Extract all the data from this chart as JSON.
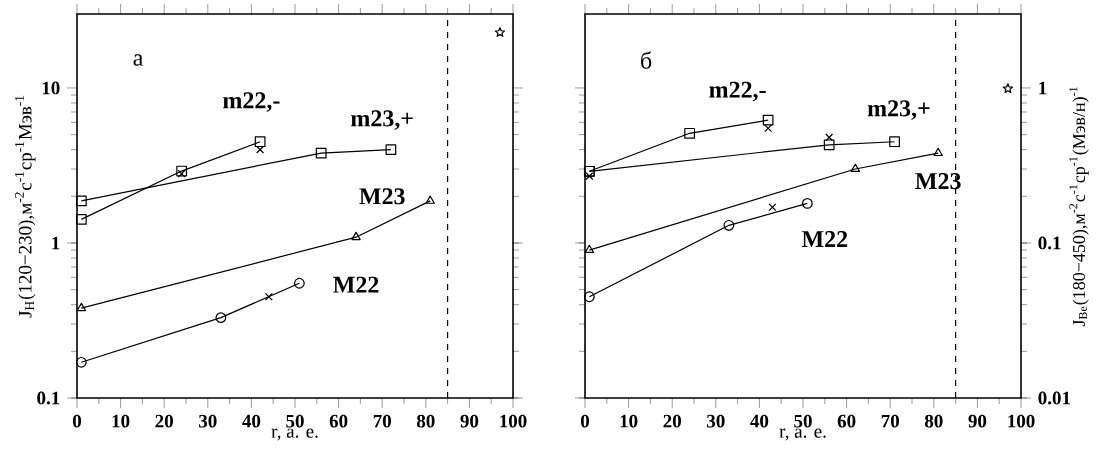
{
  "chart_data": [
    {
      "type": "line",
      "xlabel": "r,  а. е.",
      "ylabel": "J$_{Н}$(120−230),м$^{-2}$с$^{-1}$ср$^{-1}$Мэв$^{-1}$",
      "annotations": [
        "а"
      ],
      "log": "y",
      "xlim": [
        0,
        100
      ],
      "xticks": [
        0,
        10,
        20,
        30,
        40,
        50,
        60,
        70,
        80,
        90,
        100
      ],
      "ylim": [
        0.1,
        30
      ],
      "yticks": [
        0.1,
        1,
        10
      ],
      "ref_lines": [
        {
          "axis": "x",
          "value": 85,
          "line_style": "dashed"
        }
      ],
      "series": [
        {
          "name": "m22,-",
          "color": "#000000",
          "marker": "square",
          "x": [
            1,
            24,
            42
          ],
          "values": [
            1.42,
            2.91,
            4.5
          ]
        },
        {
          "name": "m23,+",
          "color": "#000000",
          "marker": "square",
          "x": [
            1,
            56,
            72
          ],
          "values": [
            1.87,
            3.8,
            4.0
          ]
        },
        {
          "name": "M23",
          "color": "#000000",
          "marker": "triangle",
          "x": [
            1,
            64,
            81
          ],
          "values": [
            0.38,
            1.09,
            1.87
          ]
        },
        {
          "name": "M22",
          "color": "#000000",
          "marker": "circle",
          "x": [
            1,
            33,
            51
          ],
          "values": [
            0.17,
            0.33,
            0.55
          ]
        },
        {
          "type": "scatter",
          "color": "#000000",
          "marker": "cross",
          "x": [
            24,
            42,
            44
          ],
          "values": [
            2.8,
            4.0,
            0.45
          ]
        },
        {
          "type": "scatter",
          "color": "#000000",
          "marker": "star",
          "x": [
            97
          ],
          "values": [
            22.8
          ]
        }
      ]
    },
    {
      "type": "line",
      "xlabel": "r,  а. е.",
      "y2label": "J$_{Ве}$(180−450),м$^{-2}$с$^{-1}$ср$^{-1}$(Мэв/н)$^{-1}$",
      "annotations": [
        "б"
      ],
      "log": "y2",
      "xlim": [
        0,
        100
      ],
      "xticks": [
        0,
        10,
        20,
        30,
        40,
        50,
        60,
        70,
        80,
        90,
        100
      ],
      "y2lim": [
        0.01,
        3
      ],
      "y2ticks": [
        0.01,
        0.1,
        1
      ],
      "ref_lines": [
        {
          "axis": "x",
          "value": 85,
          "line_style": "dashed"
        }
      ],
      "series": [
        {
          "name": "m22,-",
          "color": "#000000",
          "marker": "square",
          "axis": "y2",
          "x": [
            1,
            24,
            42
          ],
          "values": [
            0.29,
            0.51,
            0.62
          ]
        },
        {
          "name": "m23,+",
          "color": "#000000",
          "marker": "square",
          "axis": "y2",
          "x": [
            1,
            56,
            71
          ],
          "values": [
            0.29,
            0.43,
            0.45
          ]
        },
        {
          "name": "M23",
          "color": "#000000",
          "marker": "triangle",
          "axis": "y2",
          "x": [
            1,
            62,
            81
          ],
          "values": [
            0.09,
            0.3,
            0.38
          ]
        },
        {
          "name": "M22",
          "color": "#000000",
          "marker": "circle",
          "axis": "y2",
          "x": [
            1,
            33,
            51
          ],
          "values": [
            0.045,
            0.13,
            0.18
          ]
        },
        {
          "type": "scatter",
          "color": "#000000",
          "marker": "cross",
          "axis": "y2",
          "x": [
            1,
            42,
            43,
            56
          ],
          "values": [
            0.27,
            0.55,
            0.17,
            0.48
          ]
        },
        {
          "type": "scatter",
          "color": "#000000",
          "marker": "star",
          "axis": "y2",
          "x": [
            97
          ],
          "values": [
            0.99
          ]
        }
      ]
    }
  ]
}
